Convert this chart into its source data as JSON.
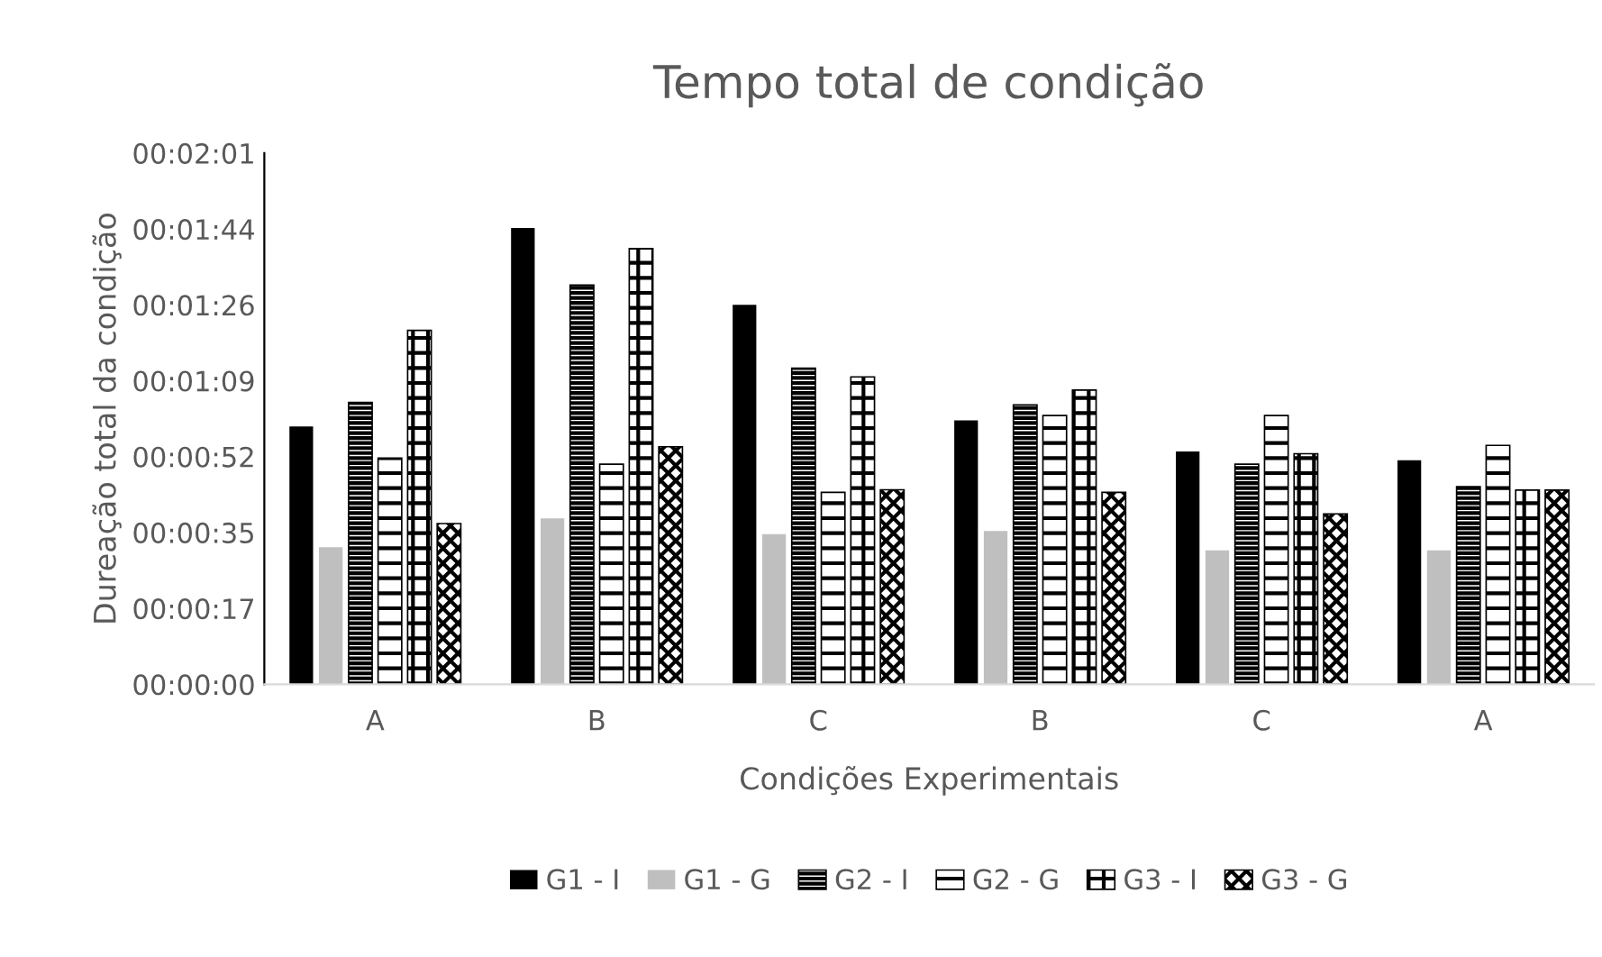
{
  "chart_data": {
    "type": "bar",
    "title": "Tempo total de condição",
    "xlabel": "Condições Experimentais",
    "ylabel": "Dureação total da condição",
    "categories": [
      "A",
      "B",
      "C",
      "B",
      "C",
      "A"
    ],
    "series": [
      {
        "name": "G1 - I",
        "color": "#000000",
        "values": [
          58.7,
          103.9,
          86.4,
          60.1,
          53.0,
          51.0
        ]
      },
      {
        "name": "G1 - G",
        "color": "#bfbfbf",
        "values": [
          31.2,
          37.8,
          34.2,
          34.9,
          30.5,
          30.5
        ]
      },
      {
        "name": "G2 - I",
        "color": "#000000",
        "values": [
          64.2,
          90.9,
          72.0,
          63.6,
          50.1,
          45.0
        ]
      },
      {
        "name": "G2 - G",
        "color": "#000000",
        "values": [
          51.5,
          50.1,
          43.7,
          61.2,
          61.2,
          54.4
        ]
      },
      {
        "name": "G3 - I",
        "color": "#000000",
        "values": [
          80.6,
          99.2,
          70.0,
          67.0,
          52.5,
          44.2
        ]
      },
      {
        "name": "G3 - G",
        "color": "#000000",
        "values": [
          36.6,
          54.1,
          44.3,
          43.7,
          38.8,
          44.2
        ]
      }
    ],
    "ylim": [
      0,
      120.96
    ],
    "yticks": [
      {
        "value": 0,
        "label": "00:00:00"
      },
      {
        "value": 17.28,
        "label": "00:00:17"
      },
      {
        "value": 34.56,
        "label": "00:00:35"
      },
      {
        "value": 51.84,
        "label": "00:00:52"
      },
      {
        "value": 69.12,
        "label": "00:01:09"
      },
      {
        "value": 86.4,
        "label": "00:01:26"
      },
      {
        "value": 103.68,
        "label": "00:01:44"
      },
      {
        "value": 120.96,
        "label": "00:02:01"
      }
    ],
    "grid": false,
    "legend": "bottom"
  }
}
